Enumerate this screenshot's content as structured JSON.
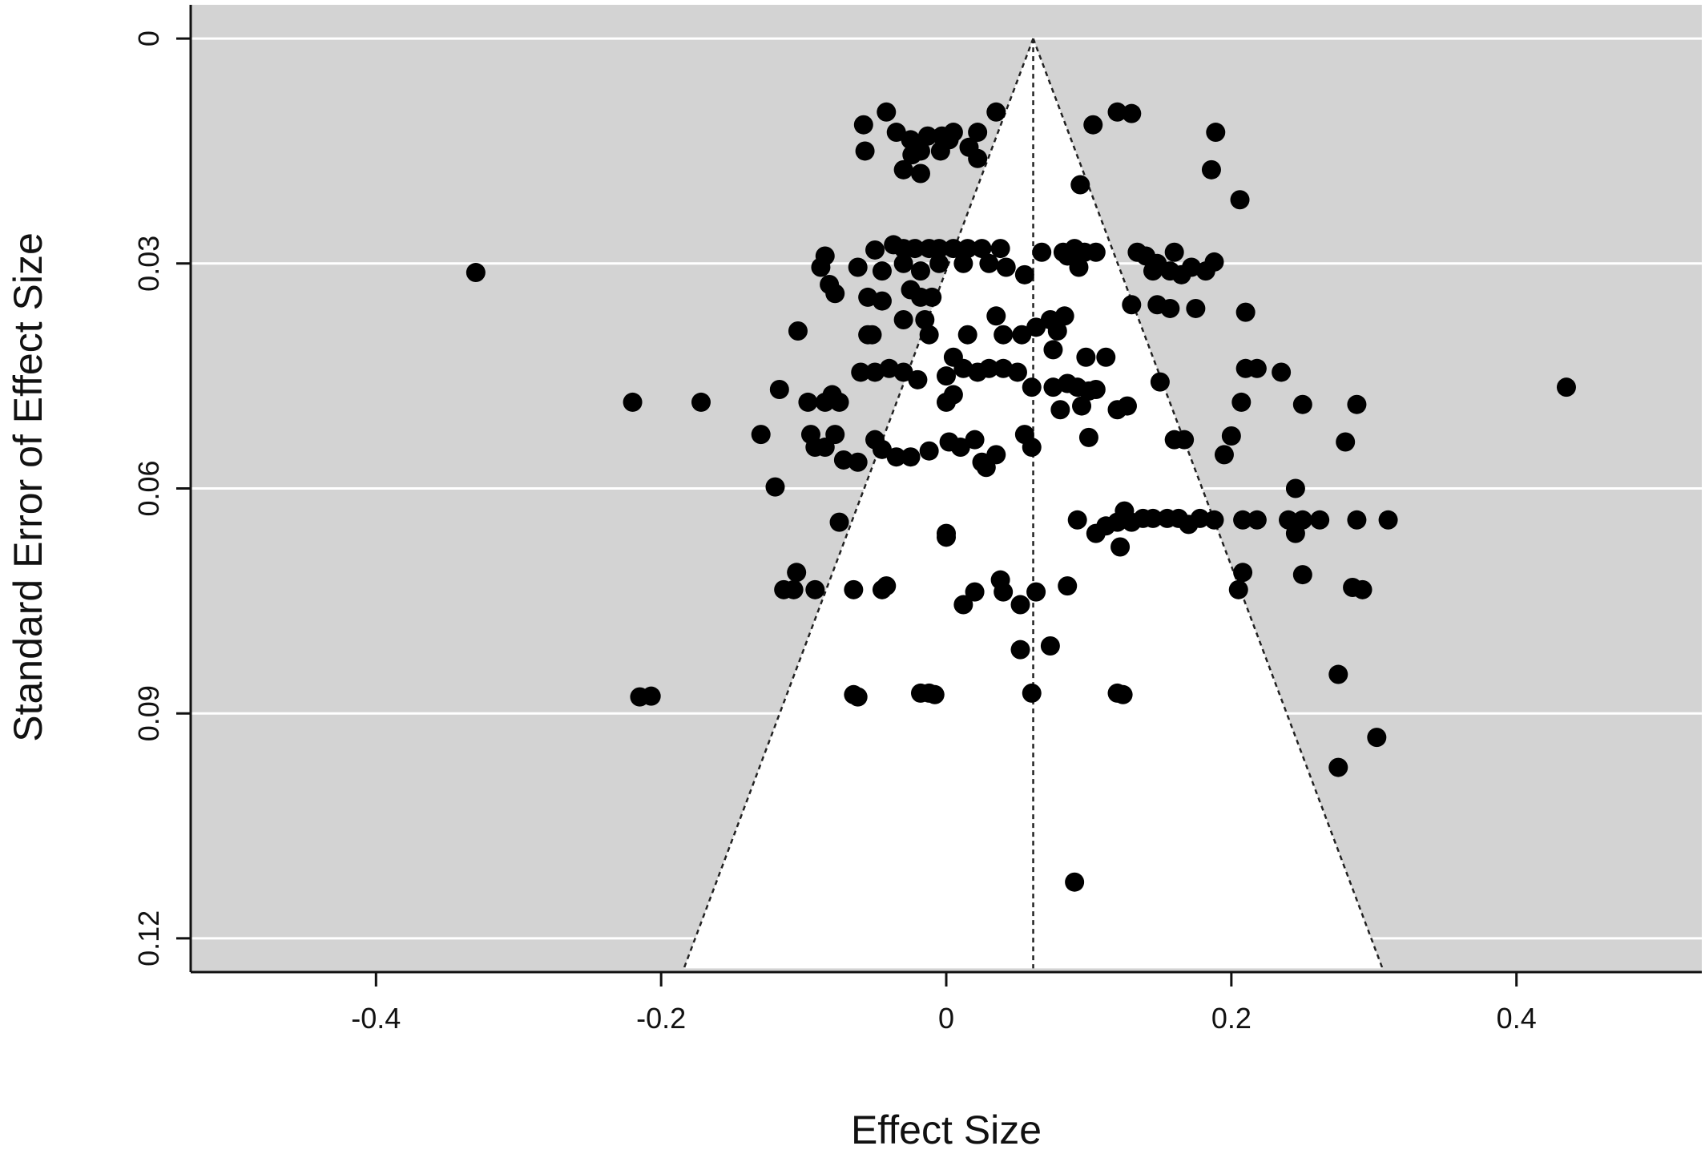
{
  "chart_data": {
    "type": "scatter",
    "subtype": "funnel-plot",
    "title": "",
    "xlabel": "Effect Size",
    "ylabel": "Standard Error of Effect Size",
    "xlim": [
      -0.53,
      0.53
    ],
    "ylim": [
      0.1245,
      -0.0045
    ],
    "y_reversed": true,
    "x_ticks": [
      -0.4,
      -0.2,
      0,
      0.2,
      0.4
    ],
    "x_tick_labels": [
      "-0.4",
      "-0.2",
      "0",
      "0.2",
      "0.4"
    ],
    "y_ticks": [
      0,
      0.03,
      0.06,
      0.09,
      0.12
    ],
    "y_tick_labels": [
      "0",
      "0.03",
      "0.06",
      "0.09",
      "0.12"
    ],
    "grid": "horizontal",
    "funnel": {
      "center": 0.061,
      "se_max": 0.124,
      "half_width_at_se_max": 0.245
    },
    "colors": {
      "background": "#d3d3d3",
      "funnel_fill": "#ffffff",
      "point": "#000000",
      "grid": "#ffffff"
    },
    "points": [
      [
        -0.058,
        0.0115
      ],
      [
        -0.042,
        0.0098
      ],
      [
        -0.035,
        0.0125
      ],
      [
        -0.025,
        0.0135
      ],
      [
        -0.013,
        0.013
      ],
      [
        -0.003,
        0.013
      ],
      [
        0.005,
        0.0125
      ],
      [
        0.022,
        0.0125
      ],
      [
        0.035,
        0.0098
      ],
      [
        -0.057,
        0.015
      ],
      [
        -0.024,
        0.0155
      ],
      [
        -0.018,
        0.015
      ],
      [
        -0.004,
        0.015
      ],
      [
        0.002,
        0.0135
      ],
      [
        0.016,
        0.0145
      ],
      [
        0.022,
        0.016
      ],
      [
        -0.03,
        0.0175
      ],
      [
        -0.018,
        0.018
      ],
      [
        0.103,
        0.0115
      ],
      [
        0.12,
        0.0098
      ],
      [
        0.13,
        0.01
      ],
      [
        0.189,
        0.0125
      ],
      [
        0.186,
        0.0175
      ],
      [
        0.206,
        0.0215
      ],
      [
        0.094,
        0.0195
      ],
      [
        -0.33,
        0.0312
      ],
      [
        -0.05,
        0.0282
      ],
      [
        -0.037,
        0.0275
      ],
      [
        -0.03,
        0.028
      ],
      [
        -0.022,
        0.028
      ],
      [
        -0.012,
        0.028
      ],
      [
        -0.005,
        0.028
      ],
      [
        0.005,
        0.028
      ],
      [
        0.015,
        0.028
      ],
      [
        0.025,
        0.028
      ],
      [
        0.038,
        0.028
      ],
      [
        -0.085,
        0.029
      ],
      [
        -0.088,
        0.0305
      ],
      [
        -0.062,
        0.0305
      ],
      [
        -0.045,
        0.031
      ],
      [
        -0.03,
        0.03
      ],
      [
        -0.018,
        0.031
      ],
      [
        -0.005,
        0.03
      ],
      [
        0.012,
        0.03
      ],
      [
        0.03,
        0.03
      ],
      [
        0.042,
        0.0305
      ],
      [
        0.055,
        0.0315
      ],
      [
        -0.082,
        0.0328
      ],
      [
        -0.078,
        0.034
      ],
      [
        -0.055,
        0.0345
      ],
      [
        -0.045,
        0.035
      ],
      [
        -0.025,
        0.0335
      ],
      [
        -0.018,
        0.0345
      ],
      [
        -0.01,
        0.0345
      ],
      [
        0.067,
        0.0285
      ],
      [
        0.082,
        0.0285
      ],
      [
        0.09,
        0.028
      ],
      [
        0.097,
        0.0285
      ],
      [
        0.105,
        0.0285
      ],
      [
        0.093,
        0.0305
      ],
      [
        0.085,
        0.029
      ],
      [
        0.134,
        0.0285
      ],
      [
        0.14,
        0.029
      ],
      [
        0.148,
        0.03
      ],
      [
        0.16,
        0.0285
      ],
      [
        0.172,
        0.0305
      ],
      [
        0.182,
        0.031
      ],
      [
        0.188,
        0.0298
      ],
      [
        0.145,
        0.031
      ],
      [
        0.157,
        0.031
      ],
      [
        0.165,
        0.0315
      ],
      [
        0.13,
        0.0355
      ],
      [
        0.148,
        0.0355
      ],
      [
        0.157,
        0.036
      ],
      [
        0.175,
        0.036
      ],
      [
        0.21,
        0.0365
      ],
      [
        -0.104,
        0.039
      ],
      [
        -0.055,
        0.0395
      ],
      [
        -0.052,
        0.0395
      ],
      [
        -0.03,
        0.0375
      ],
      [
        -0.015,
        0.0375
      ],
      [
        -0.012,
        0.0395
      ],
      [
        0.015,
        0.0395
      ],
      [
        0.035,
        0.037
      ],
      [
        0.04,
        0.0395
      ],
      [
        0.053,
        0.0395
      ],
      [
        0.063,
        0.0385
      ],
      [
        0.073,
        0.0375
      ],
      [
        0.078,
        0.039
      ],
      [
        0.083,
        0.037
      ],
      [
        -0.06,
        0.0445
      ],
      [
        -0.05,
        0.0445
      ],
      [
        -0.04,
        0.044
      ],
      [
        -0.03,
        0.0445
      ],
      [
        -0.02,
        0.0455
      ],
      [
        0,
        0.045
      ],
      [
        0.005,
        0.0425
      ],
      [
        0.012,
        0.044
      ],
      [
        0.022,
        0.0445
      ],
      [
        0.03,
        0.044
      ],
      [
        0.04,
        0.044
      ],
      [
        0.05,
        0.0445
      ],
      [
        0.075,
        0.0415
      ],
      [
        0.098,
        0.0425
      ],
      [
        0.112,
        0.0425
      ],
      [
        -0.117,
        0.0468
      ],
      [
        -0.22,
        0.0485
      ],
      [
        -0.172,
        0.0485
      ],
      [
        -0.097,
        0.0485
      ],
      [
        -0.085,
        0.0485
      ],
      [
        -0.08,
        0.0475
      ],
      [
        -0.075,
        0.0485
      ],
      [
        0,
        0.0485
      ],
      [
        0.005,
        0.0475
      ],
      [
        0.06,
        0.0465
      ],
      [
        0.075,
        0.0465
      ],
      [
        0.085,
        0.046
      ],
      [
        0.092,
        0.0465
      ],
      [
        0.1,
        0.047
      ],
      [
        0.105,
        0.0468
      ],
      [
        0.08,
        0.0495
      ],
      [
        0.095,
        0.049
      ],
      [
        0.12,
        0.0495
      ],
      [
        0.127,
        0.049
      ],
      [
        0.15,
        0.0458
      ],
      [
        0.207,
        0.0485
      ],
      [
        0.21,
        0.044
      ],
      [
        0.218,
        0.044
      ],
      [
        0.235,
        0.0445
      ],
      [
        0.25,
        0.0488
      ],
      [
        0.288,
        0.0488
      ],
      [
        0.28,
        0.0538
      ],
      [
        0.435,
        0.0465
      ],
      [
        -0.13,
        0.0528
      ],
      [
        -0.095,
        0.0528
      ],
      [
        -0.092,
        0.0545
      ],
      [
        -0.085,
        0.0545
      ],
      [
        -0.078,
        0.0528
      ],
      [
        -0.072,
        0.0562
      ],
      [
        -0.062,
        0.0565
      ],
      [
        -0.05,
        0.0535
      ],
      [
        -0.045,
        0.0548
      ],
      [
        -0.035,
        0.0558
      ],
      [
        -0.025,
        0.0558
      ],
      [
        -0.012,
        0.055
      ],
      [
        0.002,
        0.0538
      ],
      [
        0.01,
        0.0545
      ],
      [
        0.02,
        0.0535
      ],
      [
        0.025,
        0.0565
      ],
      [
        0.028,
        0.0572
      ],
      [
        0.035,
        0.0555
      ],
      [
        0.055,
        0.0528
      ],
      [
        0.06,
        0.0545
      ],
      [
        0.1,
        0.0532
      ],
      [
        0.16,
        0.0535
      ],
      [
        0.167,
        0.0535
      ],
      [
        0.195,
        0.0555
      ],
      [
        0.2,
        0.053
      ],
      [
        -0.12,
        0.0598
      ],
      [
        -0.075,
        0.0645
      ],
      [
        0,
        0.066
      ],
      [
        0,
        0.0665
      ],
      [
        0.092,
        0.0642
      ],
      [
        0.105,
        0.066
      ],
      [
        0.112,
        0.065
      ],
      [
        0.12,
        0.0645
      ],
      [
        0.125,
        0.063
      ],
      [
        0.13,
        0.0645
      ],
      [
        0.138,
        0.064
      ],
      [
        0.145,
        0.064
      ],
      [
        0.155,
        0.064
      ],
      [
        0.163,
        0.064
      ],
      [
        0.17,
        0.0648
      ],
      [
        0.178,
        0.064
      ],
      [
        0.188,
        0.0642
      ],
      [
        0.122,
        0.0678
      ],
      [
        0.208,
        0.0642
      ],
      [
        0.218,
        0.0642
      ],
      [
        0.24,
        0.0642
      ],
      [
        0.25,
        0.0642
      ],
      [
        0.262,
        0.0642
      ],
      [
        0.288,
        0.0642
      ],
      [
        0.31,
        0.0642
      ],
      [
        0.245,
        0.066
      ],
      [
        0.245,
        0.06
      ],
      [
        -0.105,
        0.0712
      ],
      [
        -0.114,
        0.0735
      ],
      [
        -0.107,
        0.0735
      ],
      [
        -0.092,
        0.0735
      ],
      [
        -0.065,
        0.0735
      ],
      [
        -0.045,
        0.0735
      ],
      [
        -0.042,
        0.073
      ],
      [
        0.012,
        0.0755
      ],
      [
        0.02,
        0.0738
      ],
      [
        0.038,
        0.0722
      ],
      [
        0.04,
        0.0738
      ],
      [
        0.052,
        0.0755
      ],
      [
        0.063,
        0.0738
      ],
      [
        0.085,
        0.073
      ],
      [
        0.205,
        0.0735
      ],
      [
        0.208,
        0.0712
      ],
      [
        0.25,
        0.0715
      ],
      [
        0.285,
        0.0732
      ],
      [
        0.292,
        0.0735
      ],
      [
        0.052,
        0.0815
      ],
      [
        0.073,
        0.081
      ],
      [
        0.275,
        0.0848
      ],
      [
        -0.215,
        0.0878
      ],
      [
        -0.207,
        0.0877
      ],
      [
        -0.065,
        0.0875
      ],
      [
        -0.062,
        0.0878
      ],
      [
        -0.018,
        0.0873
      ],
      [
        -0.012,
        0.0873
      ],
      [
        -0.008,
        0.0875
      ],
      [
        0.06,
        0.0873
      ],
      [
        0.12,
        0.0873
      ],
      [
        0.124,
        0.0875
      ],
      [
        0.302,
        0.0932
      ],
      [
        0.275,
        0.0972
      ],
      [
        0.09,
        0.1125
      ]
    ]
  }
}
